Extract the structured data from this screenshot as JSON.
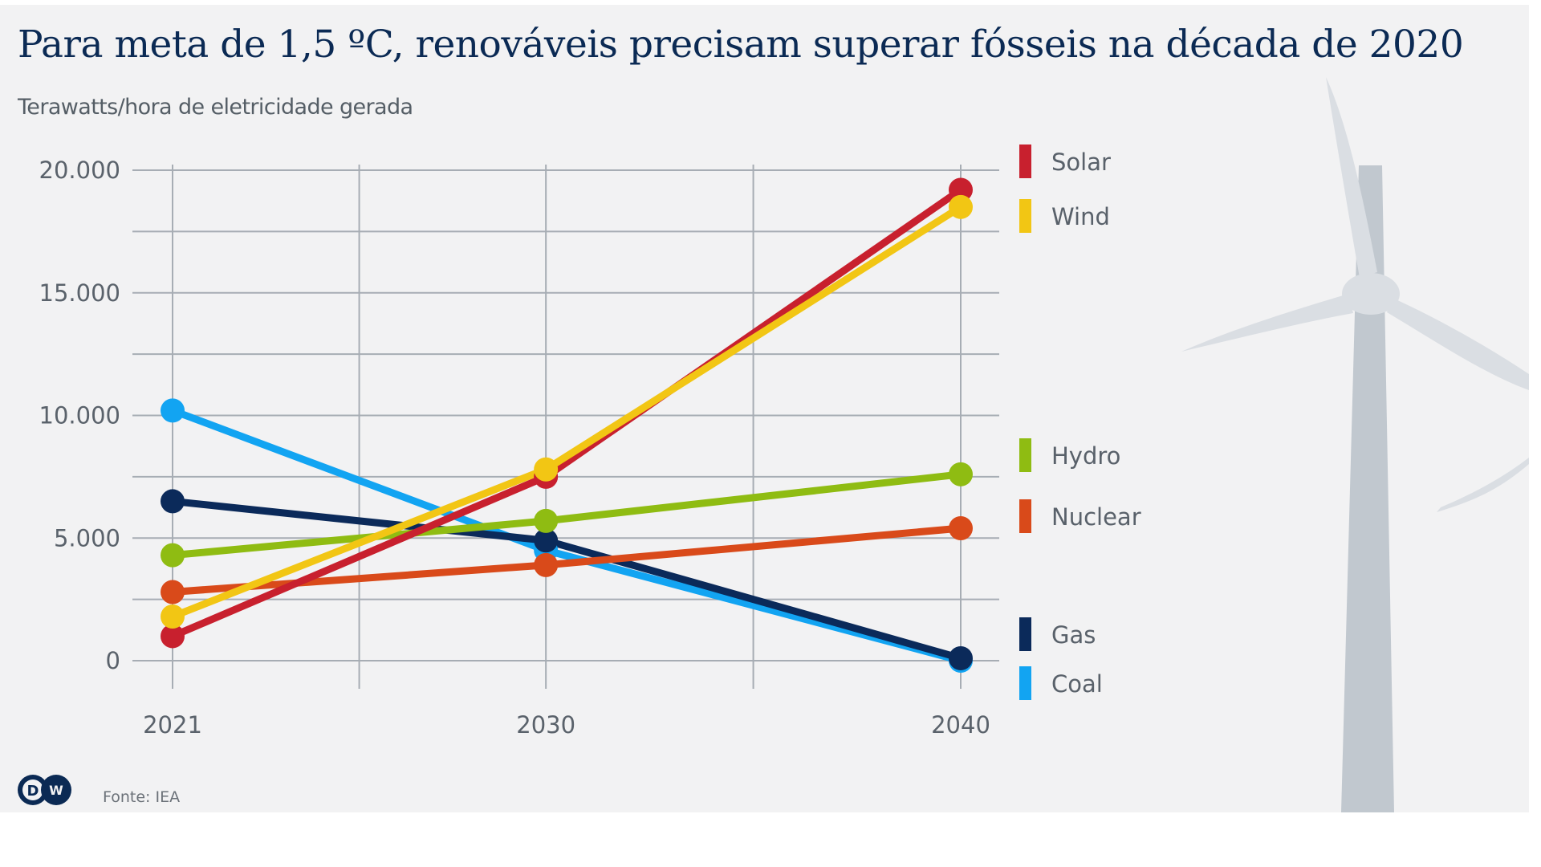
{
  "header": {
    "title": "Para meta de 1,5 ºC, renováveis precisam superar fósseis na década de 2020",
    "subtitle": "Terawatts/hora de eletricidade gerada"
  },
  "footer": {
    "logo": "DW",
    "source": "Fonte: IEA"
  },
  "chart_data": {
    "type": "line",
    "title": "Para meta de 1,5 ºC, renováveis precisam superar fósseis na década de 2020",
    "subtitle": "Terawatts/hora de eletricidade gerada",
    "xlabel": "",
    "ylabel": "Terawatts/hora de eletricidade gerada",
    "x": [
      2021,
      2030,
      2040
    ],
    "x_tick_labels": [
      "2021",
      "2030",
      "2040"
    ],
    "x_range": [
      2021,
      2040
    ],
    "ylim": [
      0,
      20000
    ],
    "y_tick_values": [
      0,
      5000,
      10000,
      15000,
      20000
    ],
    "y_tick_labels": [
      "0",
      "5.000",
      "10.000",
      "15.000",
      "20.000"
    ],
    "y_minor_gridlines": [
      2500,
      7500,
      12500,
      17500
    ],
    "x_minor_gridlines": [
      2025.5,
      2035
    ],
    "grid": true,
    "legend_position": "right",
    "series": [
      {
        "name": "Solar",
        "color": "#c8202e",
        "values": [
          1000,
          7500,
          19200
        ]
      },
      {
        "name": "Wind",
        "color": "#f2c614",
        "values": [
          1800,
          7800,
          18500
        ]
      },
      {
        "name": "Hydro",
        "color": "#8fbc12",
        "values": [
          4300,
          5700,
          7600
        ]
      },
      {
        "name": "Nuclear",
        "color": "#d94a1a",
        "values": [
          2800,
          3900,
          5400
        ]
      },
      {
        "name": "Gas",
        "color": "#0b2a5a",
        "values": [
          6500,
          4900,
          100
        ]
      },
      {
        "name": "Coal",
        "color": "#12a4f2",
        "values": [
          10200,
          4500,
          0
        ]
      }
    ],
    "draw_order": [
      "Coal",
      "Gas",
      "Nuclear",
      "Hydro",
      "Solar",
      "Wind"
    ],
    "legend_order": [
      "Solar",
      "Wind",
      "Hydro",
      "Nuclear",
      "Gas",
      "Coal"
    ]
  },
  "colors": {
    "background": "#f2f2f3",
    "grid": "#a7adb4",
    "title": "#0b2a54",
    "turbine_blades": "#dadee3",
    "turbine_tower": "#c1c8cf"
  }
}
